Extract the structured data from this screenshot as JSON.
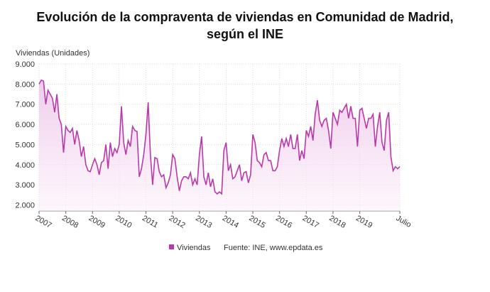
{
  "chart_data": {
    "type": "line",
    "title": "Evolución de la compraventa de viviendas en Comunidad de Madrid,",
    "subtitle": "según el INE",
    "y_label": "Viviendas (Unidades)",
    "source": "Fuente: INE, www.epdata.es",
    "categories": [
      "2007",
      null,
      null,
      null,
      null,
      null,
      null,
      null,
      null,
      null,
      null,
      null,
      "2008",
      null,
      null,
      null,
      null,
      null,
      null,
      null,
      null,
      null,
      null,
      null,
      "2009",
      null,
      null,
      null,
      null,
      null,
      null,
      null,
      null,
      null,
      null,
      null,
      "2010",
      null,
      null,
      null,
      null,
      null,
      null,
      null,
      null,
      null,
      null,
      null,
      "2011",
      null,
      null,
      null,
      null,
      null,
      null,
      null,
      null,
      null,
      null,
      null,
      "2012",
      null,
      null,
      null,
      null,
      null,
      null,
      null,
      null,
      null,
      null,
      null,
      "2013",
      null,
      null,
      null,
      null,
      null,
      null,
      null,
      null,
      null,
      null,
      null,
      "2014",
      null,
      null,
      null,
      null,
      null,
      null,
      null,
      null,
      null,
      null,
      null,
      "2015",
      null,
      null,
      null,
      null,
      null,
      null,
      null,
      null,
      null,
      null,
      null,
      "2016",
      null,
      null,
      null,
      null,
      null,
      null,
      null,
      null,
      null,
      null,
      null,
      "2017",
      null,
      null,
      null,
      null,
      null,
      null,
      null,
      null,
      null,
      null,
      null,
      "2018",
      null,
      null,
      null,
      null,
      null,
      null,
      null,
      null,
      null,
      null,
      null,
      "2019",
      null,
      null,
      null,
      null,
      null,
      null,
      null,
      null,
      null,
      null,
      null,
      null,
      null,
      null,
      null,
      null,
      null,
      "Julio"
    ],
    "series": [
      {
        "name": "Viviendas",
        "color": "#b83aa8",
        "values": [
          8000,
          8200,
          8150,
          7000,
          7700,
          7500,
          7300,
          6600,
          7500,
          6300,
          6000,
          4600,
          5900,
          5700,
          5600,
          5800,
          5000,
          5700,
          5200,
          4400,
          4900,
          4000,
          3700,
          3650,
          4000,
          4300,
          4000,
          3500,
          4100,
          4200,
          5000,
          3800,
          5100,
          4400,
          4800,
          4600,
          5000,
          6900,
          5100,
          4500,
          5200,
          4900,
          5900,
          5700,
          5650,
          3400,
          3800,
          4500,
          5500,
          7100,
          4500,
          3000,
          4350,
          4300,
          3650,
          3400,
          3500,
          2850,
          3100,
          3500,
          4500,
          4300,
          3400,
          2700,
          3200,
          3400,
          3400,
          3300,
          3600,
          3000,
          3300,
          3000,
          4500,
          5400,
          3400,
          3000,
          3600,
          2900,
          3300,
          2650,
          2550,
          2650,
          2550,
          4700,
          5100,
          3700,
          4000,
          3300,
          3400,
          3700,
          4000,
          3200,
          3600,
          3650,
          3100,
          3500,
          5500,
          5100,
          4200,
          4100,
          3900,
          4500,
          4600,
          4200,
          4200,
          3700,
          3700,
          3900,
          4700,
          5300,
          4900,
          5300,
          4900,
          5500,
          4800,
          4800,
          5500,
          4200,
          4700,
          4300,
          5700,
          5400,
          5900,
          5200,
          6500,
          7200,
          6200,
          5900,
          6200,
          6300,
          5700,
          4800,
          6600,
          6300,
          6000,
          6700,
          6600,
          6800,
          7000,
          6300,
          6900,
          6300,
          6300,
          4900,
          6700,
          6800,
          6300,
          5800,
          6300,
          6300,
          6500,
          4900,
          5900,
          6600,
          5100,
          4700,
          6200,
          6600,
          4400,
          3700,
          3900,
          3800,
          3900
        ]
      }
    ],
    "ylim": [
      1700,
      9000
    ],
    "yticks": [
      {
        "value": 2000,
        "label": "2.000"
      },
      {
        "value": 3000,
        "label": "3.000"
      },
      {
        "value": 4000,
        "label": "4.000"
      },
      {
        "value": 5000,
        "label": "5.000"
      },
      {
        "value": 6000,
        "label": "6.000"
      },
      {
        "value": 7000,
        "label": "7.000"
      },
      {
        "value": 8000,
        "label": "8.000"
      },
      {
        "value": 9000,
        "label": "9.000"
      }
    ],
    "grid": true
  }
}
